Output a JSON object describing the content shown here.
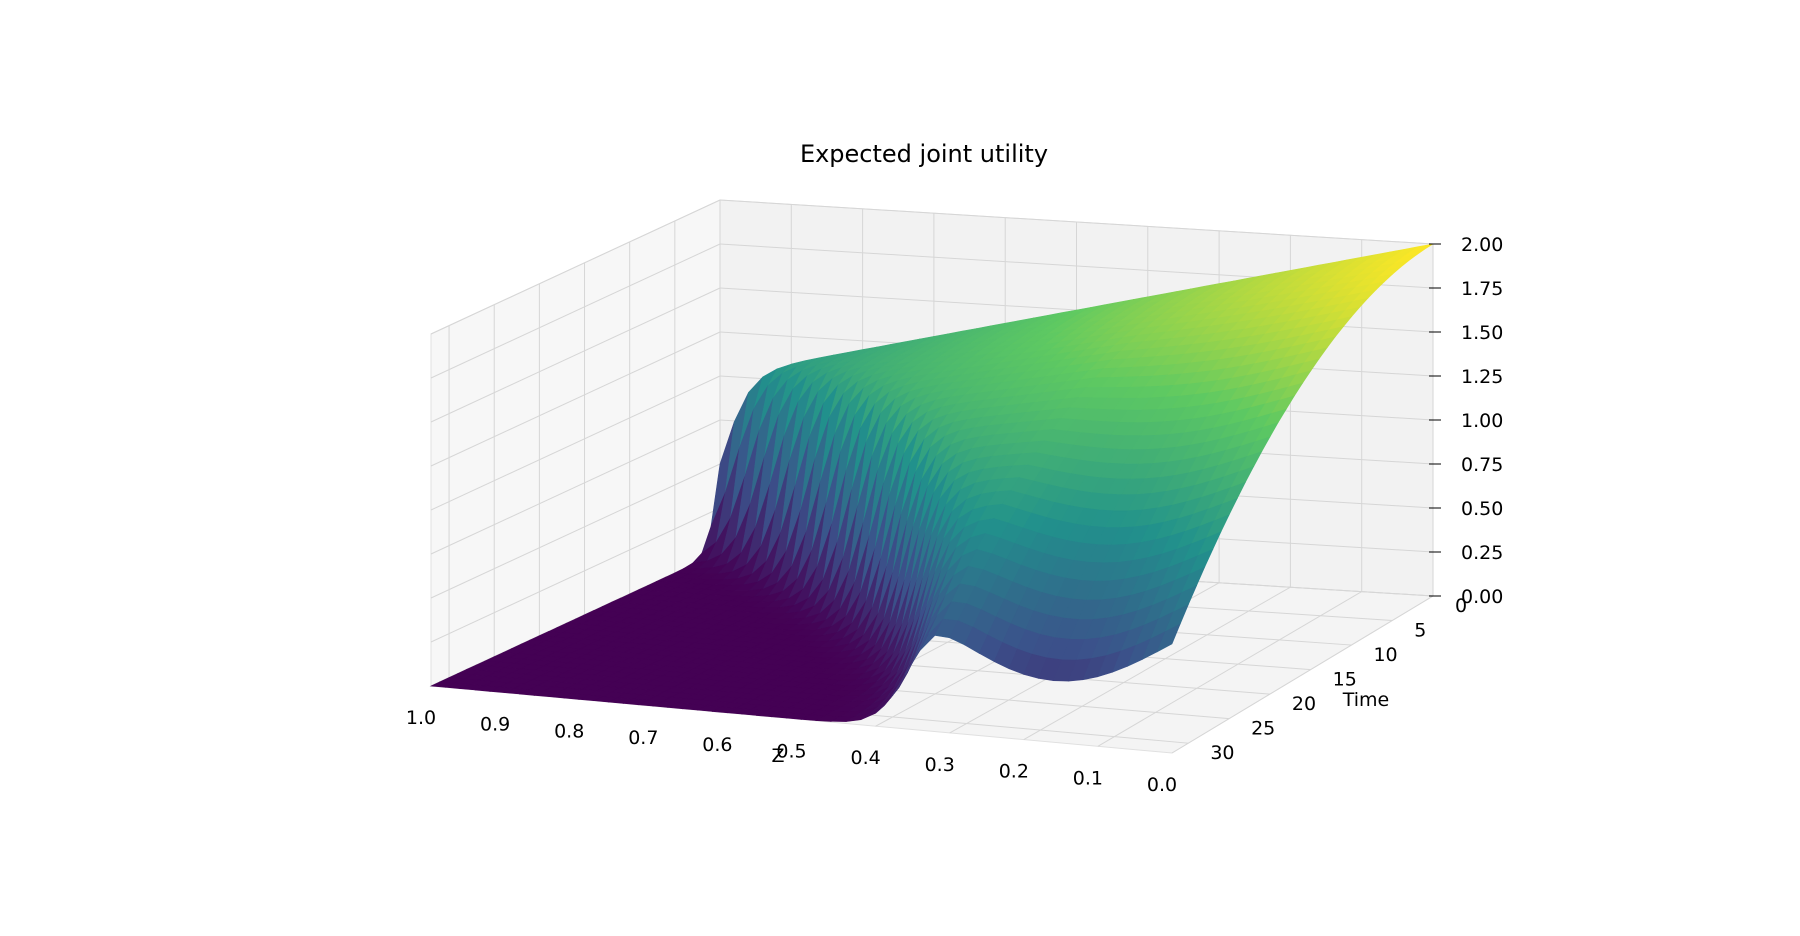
{
  "chart_data": {
    "type": "surface3d",
    "title": "Expected joint utility",
    "x_axis": {
      "label": "Z",
      "range": [
        0.0,
        1.0
      ],
      "ticks": [
        "1.0",
        "0.9",
        "0.8",
        "0.7",
        "0.6",
        "0.5",
        "0.4",
        "0.3",
        "0.2",
        "0.1",
        "0.0"
      ]
    },
    "y_axis": {
      "label": "Time",
      "range": [
        0,
        32
      ],
      "ticks": [
        "0",
        "5",
        "10",
        "15",
        "20",
        "25",
        "30"
      ]
    },
    "z_axis": {
      "label": "",
      "range": [
        0.0,
        2.0
      ],
      "ticks": [
        "0.00",
        "0.25",
        "0.50",
        "0.75",
        "1.00",
        "1.25",
        "1.50",
        "1.75",
        "2.00"
      ]
    },
    "colormap": "viridis",
    "colormap_stops": [
      "#440154",
      "#3b528b",
      "#21918c",
      "#5ec962",
      "#fde725"
    ],
    "grid": true,
    "legend": "none",
    "surface_description_points": [
      {
        "Z": 1.0,
        "Time": 0,
        "value": 1.0
      },
      {
        "Z": 0.5,
        "Time": 0,
        "value": 1.5
      },
      {
        "Z": 0.0,
        "Time": 0,
        "value": 2.0
      },
      {
        "Z": 1.0,
        "Time": 30,
        "value": 0.0
      },
      {
        "Z": 0.4,
        "Time": 30,
        "value": 0.0
      },
      {
        "Z": 0.3,
        "Time": 30,
        "value": 0.55
      },
      {
        "Z": 0.15,
        "Time": 30,
        "value": 0.2
      },
      {
        "Z": 0.0,
        "Time": 30,
        "value": 0.65
      }
    ]
  }
}
